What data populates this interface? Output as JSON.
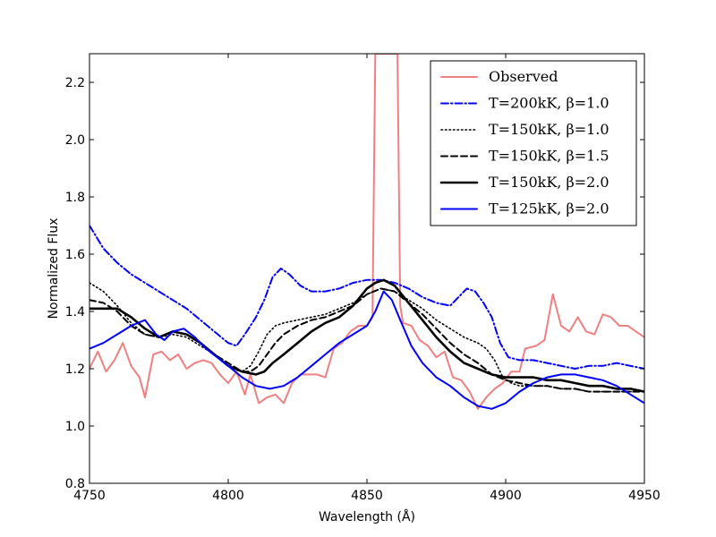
{
  "chart_data": {
    "type": "line",
    "title": "",
    "xlabel": "Wavelength (Å)",
    "ylabel": "Normalized Flux",
    "xlim": [
      4750,
      4950
    ],
    "ylim": [
      0.8,
      2.3
    ],
    "xticks": [
      4750,
      4800,
      4850,
      4900,
      4950
    ],
    "yticks": [
      0.8,
      1.0,
      1.2,
      1.4,
      1.6,
      1.8,
      2.0,
      2.2
    ],
    "xtick_labels": [
      "4750",
      "4800",
      "4850",
      "4900",
      "4950"
    ],
    "ytick_labels": [
      "0.8",
      "1.0",
      "1.2",
      "1.4",
      "1.6",
      "1.8",
      "2.0",
      "2.2"
    ],
    "legend_position": "top-right",
    "series": [
      {
        "name": "Observed",
        "legend_label": "Observed",
        "color": "#f08080",
        "style": "solid",
        "points": [
          [
            4750,
            1.2
          ],
          [
            4753,
            1.26
          ],
          [
            4756,
            1.19
          ],
          [
            4759,
            1.23
          ],
          [
            4762,
            1.29
          ],
          [
            4765,
            1.21
          ],
          [
            4768,
            1.17
          ],
          [
            4770,
            1.1
          ],
          [
            4773,
            1.25
          ],
          [
            4776,
            1.26
          ],
          [
            4779,
            1.23
          ],
          [
            4782,
            1.25
          ],
          [
            4785,
            1.2
          ],
          [
            4788,
            1.22
          ],
          [
            4791,
            1.23
          ],
          [
            4794,
            1.22
          ],
          [
            4797,
            1.18
          ],
          [
            4800,
            1.15
          ],
          [
            4803,
            1.19
          ],
          [
            4806,
            1.11
          ],
          [
            4808,
            1.18
          ],
          [
            4811,
            1.08
          ],
          [
            4814,
            1.1
          ],
          [
            4817,
            1.11
          ],
          [
            4820,
            1.08
          ],
          [
            4823,
            1.15
          ],
          [
            4826,
            1.18
          ],
          [
            4829,
            1.18
          ],
          [
            4832,
            1.18
          ],
          [
            4835,
            1.17
          ],
          [
            4838,
            1.27
          ],
          [
            4841,
            1.29
          ],
          [
            4844,
            1.33
          ],
          [
            4847,
            1.35
          ],
          [
            4850,
            1.35
          ],
          [
            4852,
            1.38
          ],
          [
            4853,
            2.3
          ],
          [
            4856,
            2.3
          ],
          [
            4859,
            2.3
          ],
          [
            4861,
            2.3
          ],
          [
            4862,
            1.42
          ],
          [
            4863,
            1.36
          ],
          [
            4866,
            1.35
          ],
          [
            4869,
            1.3
          ],
          [
            4872,
            1.28
          ],
          [
            4875,
            1.24
          ],
          [
            4878,
            1.26
          ],
          [
            4881,
            1.17
          ],
          [
            4884,
            1.16
          ],
          [
            4887,
            1.12
          ],
          [
            4890,
            1.06
          ],
          [
            4893,
            1.1
          ],
          [
            4896,
            1.13
          ],
          [
            4899,
            1.15
          ],
          [
            4902,
            1.19
          ],
          [
            4905,
            1.19
          ],
          [
            4907,
            1.27
          ],
          [
            4911,
            1.28
          ],
          [
            4914,
            1.3
          ],
          [
            4917,
            1.46
          ],
          [
            4920,
            1.35
          ],
          [
            4923,
            1.33
          ],
          [
            4926,
            1.38
          ],
          [
            4929,
            1.33
          ],
          [
            4932,
            1.32
          ],
          [
            4935,
            1.39
          ],
          [
            4938,
            1.38
          ],
          [
            4941,
            1.35
          ],
          [
            4944,
            1.35
          ],
          [
            4947,
            1.33
          ],
          [
            4950,
            1.31
          ]
        ]
      },
      {
        "name": "T=200kK, beta=1.0",
        "legend_label": "T=200kK, β=1.0",
        "color": "#0000ff",
        "style": "dashdot",
        "points": [
          [
            4750,
            1.7
          ],
          [
            4755,
            1.62
          ],
          [
            4760,
            1.57
          ],
          [
            4765,
            1.53
          ],
          [
            4770,
            1.5
          ],
          [
            4775,
            1.47
          ],
          [
            4780,
            1.44
          ],
          [
            4785,
            1.41
          ],
          [
            4790,
            1.37
          ],
          [
            4795,
            1.33
          ],
          [
            4800,
            1.29
          ],
          [
            4803,
            1.28
          ],
          [
            4806,
            1.32
          ],
          [
            4810,
            1.38
          ],
          [
            4813,
            1.44
          ],
          [
            4816,
            1.52
          ],
          [
            4819,
            1.55
          ],
          [
            4822,
            1.53
          ],
          [
            4826,
            1.49
          ],
          [
            4830,
            1.47
          ],
          [
            4835,
            1.47
          ],
          [
            4840,
            1.48
          ],
          [
            4845,
            1.5
          ],
          [
            4850,
            1.51
          ],
          [
            4855,
            1.51
          ],
          [
            4860,
            1.5
          ],
          [
            4865,
            1.48
          ],
          [
            4870,
            1.45
          ],
          [
            4875,
            1.43
          ],
          [
            4880,
            1.42
          ],
          [
            4883,
            1.45
          ],
          [
            4886,
            1.48
          ],
          [
            4889,
            1.47
          ],
          [
            4892,
            1.43
          ],
          [
            4895,
            1.38
          ],
          [
            4898,
            1.29
          ],
          [
            4901,
            1.24
          ],
          [
            4905,
            1.23
          ],
          [
            4910,
            1.23
          ],
          [
            4915,
            1.22
          ],
          [
            4920,
            1.21
          ],
          [
            4925,
            1.2
          ],
          [
            4930,
            1.21
          ],
          [
            4935,
            1.21
          ],
          [
            4940,
            1.22
          ],
          [
            4945,
            1.21
          ],
          [
            4950,
            1.2
          ]
        ]
      },
      {
        "name": "T=150kK, beta=1.0",
        "legend_label": "T=150kK, β=1.0",
        "color": "#000000",
        "style": "dotted",
        "points": [
          [
            4750,
            1.5
          ],
          [
            4755,
            1.47
          ],
          [
            4760,
            1.42
          ],
          [
            4765,
            1.36
          ],
          [
            4770,
            1.32
          ],
          [
            4775,
            1.31
          ],
          [
            4780,
            1.32
          ],
          [
            4785,
            1.31
          ],
          [
            4790,
            1.28
          ],
          [
            4795,
            1.25
          ],
          [
            4800,
            1.21
          ],
          [
            4805,
            1.19
          ],
          [
            4808,
            1.21
          ],
          [
            4811,
            1.26
          ],
          [
            4814,
            1.32
          ],
          [
            4817,
            1.35
          ],
          [
            4820,
            1.36
          ],
          [
            4825,
            1.37
          ],
          [
            4830,
            1.38
          ],
          [
            4835,
            1.39
          ],
          [
            4840,
            1.41
          ],
          [
            4845,
            1.43
          ],
          [
            4850,
            1.46
          ],
          [
            4855,
            1.48
          ],
          [
            4860,
            1.47
          ],
          [
            4865,
            1.44
          ],
          [
            4870,
            1.41
          ],
          [
            4875,
            1.37
          ],
          [
            4880,
            1.34
          ],
          [
            4885,
            1.31
          ],
          [
            4890,
            1.29
          ],
          [
            4893,
            1.27
          ],
          [
            4896,
            1.23
          ],
          [
            4899,
            1.17
          ],
          [
            4902,
            1.15
          ],
          [
            4905,
            1.14
          ],
          [
            4910,
            1.14
          ],
          [
            4915,
            1.14
          ],
          [
            4920,
            1.13
          ],
          [
            4925,
            1.13
          ],
          [
            4930,
            1.12
          ],
          [
            4935,
            1.12
          ],
          [
            4940,
            1.12
          ],
          [
            4945,
            1.12
          ],
          [
            4950,
            1.12
          ]
        ]
      },
      {
        "name": "T=150kK, beta=1.5",
        "legend_label": "T=150kK, β=1.5",
        "color": "#000000",
        "style": "dashed",
        "points": [
          [
            4750,
            1.44
          ],
          [
            4755,
            1.43
          ],
          [
            4760,
            1.4
          ],
          [
            4765,
            1.35
          ],
          [
            4770,
            1.32
          ],
          [
            4775,
            1.31
          ],
          [
            4780,
            1.33
          ],
          [
            4785,
            1.32
          ],
          [
            4790,
            1.29
          ],
          [
            4795,
            1.25
          ],
          [
            4800,
            1.22
          ],
          [
            4805,
            1.19
          ],
          [
            4808,
            1.19
          ],
          [
            4811,
            1.21
          ],
          [
            4814,
            1.25
          ],
          [
            4817,
            1.29
          ],
          [
            4820,
            1.32
          ],
          [
            4825,
            1.35
          ],
          [
            4830,
            1.37
          ],
          [
            4835,
            1.38
          ],
          [
            4840,
            1.4
          ],
          [
            4845,
            1.42
          ],
          [
            4850,
            1.46
          ],
          [
            4855,
            1.48
          ],
          [
            4860,
            1.47
          ],
          [
            4865,
            1.43
          ],
          [
            4870,
            1.39
          ],
          [
            4875,
            1.34
          ],
          [
            4880,
            1.29
          ],
          [
            4885,
            1.25
          ],
          [
            4890,
            1.22
          ],
          [
            4895,
            1.18
          ],
          [
            4900,
            1.16
          ],
          [
            4905,
            1.15
          ],
          [
            4910,
            1.14
          ],
          [
            4915,
            1.14
          ],
          [
            4920,
            1.13
          ],
          [
            4925,
            1.13
          ],
          [
            4930,
            1.12
          ],
          [
            4935,
            1.12
          ],
          [
            4940,
            1.12
          ],
          [
            4945,
            1.12
          ],
          [
            4950,
            1.12
          ]
        ]
      },
      {
        "name": "T=150kK, beta=2.0",
        "legend_label": "T=150kK, β=2.0",
        "color": "#000000",
        "style": "solid-thick",
        "points": [
          [
            4750,
            1.41
          ],
          [
            4755,
            1.41
          ],
          [
            4760,
            1.41
          ],
          [
            4765,
            1.38
          ],
          [
            4770,
            1.34
          ],
          [
            4775,
            1.31
          ],
          [
            4780,
            1.33
          ],
          [
            4785,
            1.32
          ],
          [
            4790,
            1.29
          ],
          [
            4795,
            1.25
          ],
          [
            4800,
            1.21
          ],
          [
            4805,
            1.19
          ],
          [
            4810,
            1.18
          ],
          [
            4813,
            1.19
          ],
          [
            4816,
            1.22
          ],
          [
            4820,
            1.25
          ],
          [
            4825,
            1.29
          ],
          [
            4830,
            1.33
          ],
          [
            4835,
            1.36
          ],
          [
            4840,
            1.38
          ],
          [
            4845,
            1.42
          ],
          [
            4850,
            1.48
          ],
          [
            4853,
            1.5
          ],
          [
            4856,
            1.51
          ],
          [
            4860,
            1.49
          ],
          [
            4865,
            1.43
          ],
          [
            4870,
            1.37
          ],
          [
            4875,
            1.31
          ],
          [
            4880,
            1.26
          ],
          [
            4885,
            1.22
          ],
          [
            4890,
            1.2
          ],
          [
            4895,
            1.18
          ],
          [
            4900,
            1.17
          ],
          [
            4905,
            1.17
          ],
          [
            4910,
            1.17
          ],
          [
            4915,
            1.16
          ],
          [
            4920,
            1.16
          ],
          [
            4925,
            1.15
          ],
          [
            4930,
            1.14
          ],
          [
            4935,
            1.14
          ],
          [
            4940,
            1.13
          ],
          [
            4945,
            1.13
          ],
          [
            4950,
            1.12
          ]
        ]
      },
      {
        "name": "T=125kK, beta=2.0",
        "legend_label": "T=125kK, β=2.0",
        "color": "#0000ff",
        "style": "solid",
        "points": [
          [
            4750,
            1.27
          ],
          [
            4755,
            1.29
          ],
          [
            4760,
            1.32
          ],
          [
            4765,
            1.35
          ],
          [
            4770,
            1.37
          ],
          [
            4774,
            1.32
          ],
          [
            4777,
            1.3
          ],
          [
            4780,
            1.33
          ],
          [
            4784,
            1.34
          ],
          [
            4788,
            1.31
          ],
          [
            4792,
            1.27
          ],
          [
            4796,
            1.24
          ],
          [
            4800,
            1.21
          ],
          [
            4805,
            1.17
          ],
          [
            4810,
            1.14
          ],
          [
            4815,
            1.13
          ],
          [
            4820,
            1.14
          ],
          [
            4825,
            1.17
          ],
          [
            4830,
            1.21
          ],
          [
            4835,
            1.25
          ],
          [
            4840,
            1.29
          ],
          [
            4845,
            1.32
          ],
          [
            4850,
            1.35
          ],
          [
            4853,
            1.4
          ],
          [
            4856,
            1.47
          ],
          [
            4859,
            1.44
          ],
          [
            4862,
            1.37
          ],
          [
            4866,
            1.28
          ],
          [
            4870,
            1.22
          ],
          [
            4875,
            1.17
          ],
          [
            4880,
            1.14
          ],
          [
            4885,
            1.1
          ],
          [
            4890,
            1.07
          ],
          [
            4895,
            1.06
          ],
          [
            4900,
            1.08
          ],
          [
            4905,
            1.12
          ],
          [
            4910,
            1.15
          ],
          [
            4915,
            1.17
          ],
          [
            4920,
            1.18
          ],
          [
            4925,
            1.18
          ],
          [
            4930,
            1.17
          ],
          [
            4935,
            1.16
          ],
          [
            4940,
            1.14
          ],
          [
            4945,
            1.11
          ],
          [
            4950,
            1.08
          ]
        ]
      }
    ]
  }
}
